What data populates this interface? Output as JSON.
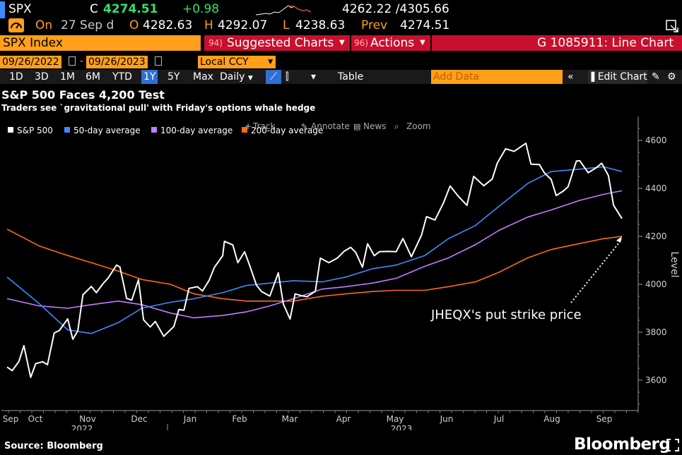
{
  "header": {
    "ticker": "SPX",
    "close_prefix": "C",
    "last": "4274.51",
    "change": "+0.98",
    "range": "4262.22 /4305.66",
    "on_label": "On",
    "date": "27 Sep d",
    "open_label": "O",
    "open": "4282.63",
    "high_label": "H",
    "high": "4292.07",
    "low_label": "L",
    "low": "4238.63",
    "prev_label": "Prev",
    "prev": "4274.51"
  },
  "toolbar": {
    "security": "SPX Index",
    "suggested_num": "94)",
    "suggested": "Suggested Charts",
    "actions_num": "96)",
    "actions": "Actions",
    "chart_id": "G 1085911: Line Chart",
    "date_from": "09/26/2022",
    "date_sep": "-",
    "date_to": "09/26/2023",
    "currency": "Local CCY",
    "periods": [
      "1D",
      "3D",
      "1M",
      "6M",
      "YTD",
      "1Y",
      "5Y",
      "Max"
    ],
    "active_period": "1Y",
    "frequency": "Daily",
    "table": "Table",
    "add_data": "Add Data",
    "edit_chart": "Edit Chart"
  },
  "title": "S&P 500 Faces 4,200 Test",
  "subtitle": "Traders see `gravitational pull' with Friday's options whale hedge",
  "source": "Source: Bloomberg",
  "brand": "Bloomberg",
  "chart_tools": {
    "track": "Track",
    "annotate": "Annotate",
    "news": "News",
    "zoom": "Zoom"
  },
  "colors": {
    "accent": "#ff9f1a",
    "up": "#2fe36a",
    "down": "#ff3b3b",
    "spx": "#ffffff",
    "ma50": "#3d8bff",
    "ma100": "#c27dff",
    "ma200": "#ff6a1a",
    "banner": "#c8102e"
  },
  "chart_data": {
    "type": "line",
    "ylabel": "Level",
    "ylim": [
      3480,
      4680
    ],
    "yticks": [
      3600,
      3800,
      4000,
      4200,
      4400,
      4600
    ],
    "x_months": [
      "Sep",
      "Oct",
      "Nov",
      "Dec",
      "Jan",
      "Feb",
      "Mar",
      "Apr",
      "May",
      "Jun",
      "Jul",
      "Aug",
      "Sep"
    ],
    "x_years": [
      "2022",
      "2023"
    ],
    "annotation": "JHEQX's put strike price",
    "annotation_target": 4200,
    "series": [
      {
        "name": "S&P 500",
        "color": "#ffffff",
        "x": [
          "2022-09-26",
          "2022-09-29",
          "2022-10-03",
          "2022-10-06",
          "2022-10-10",
          "2022-10-13",
          "2022-10-17",
          "2022-10-20",
          "2022-10-24",
          "2022-10-27",
          "2022-11-01",
          "2022-11-04",
          "2022-11-07",
          "2022-11-10",
          "2022-11-15",
          "2022-11-18",
          "2022-11-22",
          "2022-11-25",
          "2022-11-30",
          "2022-12-02",
          "2022-12-06",
          "2022-12-09",
          "2022-12-13",
          "2022-12-16",
          "2022-12-20",
          "2022-12-23",
          "2022-12-28",
          "2023-01-03",
          "2023-01-06",
          "2023-01-09",
          "2023-01-12",
          "2023-01-17",
          "2023-01-20",
          "2023-01-24",
          "2023-01-27",
          "2023-02-01",
          "2023-02-02",
          "2023-02-07",
          "2023-02-10",
          "2023-02-14",
          "2023-02-17",
          "2023-02-21",
          "2023-02-24",
          "2023-03-01",
          "2023-03-06",
          "2023-03-09",
          "2023-03-13",
          "2023-03-16",
          "2023-03-20",
          "2023-03-23",
          "2023-03-28",
          "2023-03-31",
          "2023-04-05",
          "2023-04-10",
          "2023-04-14",
          "2023-04-18",
          "2023-04-21",
          "2023-04-25",
          "2023-04-28",
          "2023-05-02",
          "2023-05-05",
          "2023-05-10",
          "2023-05-15",
          "2023-05-19",
          "2023-05-24",
          "2023-05-30",
          "2023-06-02",
          "2023-06-07",
          "2023-06-12",
          "2023-06-16",
          "2023-06-21",
          "2023-06-26",
          "2023-06-30",
          "2023-07-06",
          "2023-07-11",
          "2023-07-14",
          "2023-07-19",
          "2023-07-24",
          "2023-07-31",
          "2023-08-03",
          "2023-08-08",
          "2023-08-11",
          "2023-08-15",
          "2023-08-18",
          "2023-08-22",
          "2023-08-25",
          "2023-08-30",
          "2023-09-01",
          "2023-09-06",
          "2023-09-11",
          "2023-09-14",
          "2023-09-18",
          "2023-09-21",
          "2023-09-26"
        ],
        "y": [
          3655,
          3640,
          3678,
          3744,
          3612,
          3669,
          3677,
          3665,
          3797,
          3807,
          3856,
          3771,
          3806,
          3956,
          3991,
          3965,
          4003,
          4026,
          4080,
          4072,
          3941,
          3934,
          4019,
          3852,
          3822,
          3845,
          3783,
          3824,
          3895,
          3892,
          3983,
          3990,
          3972,
          4017,
          4070,
          4119,
          4179,
          4164,
          4090,
          4136,
          4079,
          3997,
          3970,
          3951,
          4048,
          3918,
          3855,
          3960,
          3952,
          3948,
          3971,
          4109,
          4090,
          4109,
          4137,
          4154,
          4133,
          4071,
          4169,
          4119,
          4136,
          4137,
          4136,
          4191,
          4115,
          4205,
          4282,
          4268,
          4338,
          4410,
          4366,
          4329,
          4450,
          4411,
          4439,
          4505,
          4565,
          4554,
          4588,
          4501,
          4499,
          4464,
          4437,
          4370,
          4388,
          4406,
          4514,
          4515,
          4465,
          4487,
          4505,
          4453,
          4330,
          4274
        ]
      },
      {
        "name": "50-day average",
        "color": "#3d8bff",
        "x": [
          "2022-09-26",
          "2022-10-15",
          "2022-11-01",
          "2022-11-15",
          "2022-12-01",
          "2022-12-15",
          "2023-01-01",
          "2023-01-15",
          "2023-02-01",
          "2023-02-15",
          "2023-03-01",
          "2023-03-15",
          "2023-04-01",
          "2023-04-15",
          "2023-05-01",
          "2023-05-15",
          "2023-06-01",
          "2023-06-15",
          "2023-07-01",
          "2023-07-15",
          "2023-08-01",
          "2023-08-15",
          "2023-09-01",
          "2023-09-15",
          "2023-09-26"
        ],
        "y": [
          4030,
          3920,
          3810,
          3795,
          3840,
          3900,
          3925,
          3940,
          3965,
          3995,
          4005,
          4015,
          4010,
          4030,
          4065,
          4080,
          4120,
          4190,
          4245,
          4325,
          4420,
          4470,
          4480,
          4490,
          4470
        ]
      },
      {
        "name": "100-day average",
        "color": "#c27dff",
        "x": [
          "2022-09-26",
          "2022-10-15",
          "2022-11-01",
          "2022-11-15",
          "2022-12-01",
          "2022-12-15",
          "2023-01-01",
          "2023-01-15",
          "2023-02-01",
          "2023-02-15",
          "2023-03-01",
          "2023-03-15",
          "2023-04-01",
          "2023-04-15",
          "2023-05-01",
          "2023-05-15",
          "2023-06-01",
          "2023-06-15",
          "2023-07-01",
          "2023-07-15",
          "2023-08-01",
          "2023-08-15",
          "2023-09-01",
          "2023-09-15",
          "2023-09-26"
        ],
        "y": [
          3940,
          3910,
          3900,
          3915,
          3930,
          3915,
          3880,
          3860,
          3870,
          3885,
          3910,
          3940,
          3980,
          3990,
          4005,
          4025,
          4075,
          4110,
          4165,
          4225,
          4280,
          4310,
          4350,
          4375,
          4390
        ]
      },
      {
        "name": "200-day average",
        "color": "#ff6a1a",
        "x": [
          "2022-09-26",
          "2022-10-15",
          "2022-11-01",
          "2022-11-15",
          "2022-12-01",
          "2022-12-15",
          "2023-01-01",
          "2023-01-15",
          "2023-02-01",
          "2023-02-15",
          "2023-03-01",
          "2023-03-15",
          "2023-04-01",
          "2023-04-15",
          "2023-05-01",
          "2023-05-15",
          "2023-06-01",
          "2023-06-15",
          "2023-07-01",
          "2023-07-15",
          "2023-08-01",
          "2023-08-15",
          "2023-09-01",
          "2023-09-15",
          "2023-09-26"
        ],
        "y": [
          4230,
          4160,
          4120,
          4090,
          4055,
          4020,
          4000,
          3960,
          3940,
          3930,
          3930,
          3930,
          3950,
          3960,
          3970,
          3975,
          3975,
          3990,
          4010,
          4050,
          4110,
          4145,
          4170,
          4190,
          4200
        ]
      }
    ]
  }
}
